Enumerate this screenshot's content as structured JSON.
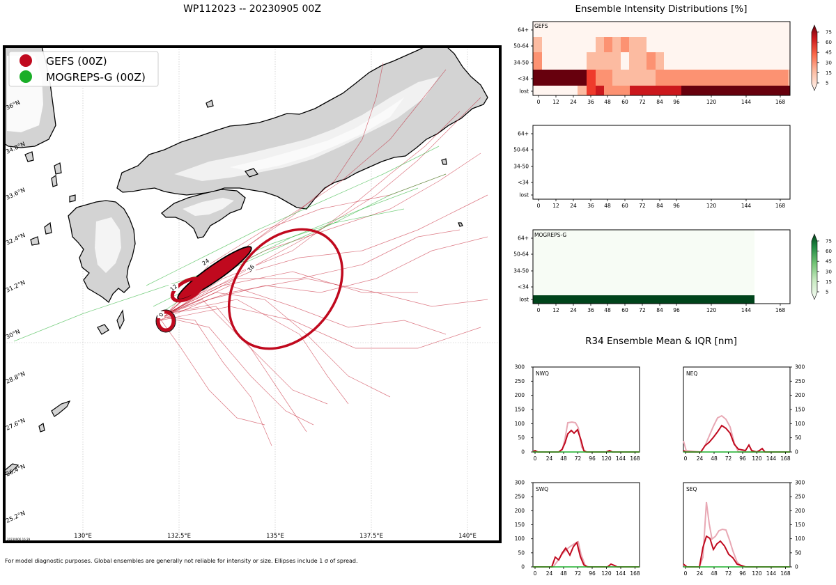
{
  "map": {
    "title": "WP112023 -- 20230905 00Z",
    "footnote": "For model diagnostic purposes. Global ensembles are generally not reliable for intensity or size. Ellipses include 1 σ of spread.",
    "stamp": "20230906 16:29",
    "lon_labels": [
      "130°E",
      "132.5°E",
      "135°E",
      "137.5°E",
      "140°E"
    ],
    "lat_labels": [
      "36°N",
      "34.8°N",
      "33.6°N",
      "32.4°N",
      "31.2°N",
      "30°N",
      "28.8°N",
      "27.6°N",
      "26.4°N",
      "25.2°N"
    ],
    "legend": [
      {
        "label": "GEFS (00Z)",
        "color": "#c0091e"
      },
      {
        "label": "MOGREPS-G (00Z)",
        "color": "#1aae28"
      }
    ],
    "ellipse_labels": [
      "0",
      "12",
      "24",
      "36"
    ],
    "colors": {
      "land": "#d3d3d3",
      "gefs": "#c0091e",
      "mogreps": "#1aae28",
      "border": "#000000"
    }
  },
  "intensity": {
    "title": "Ensemble Intensity Distributions [%]",
    "rows": [
      "64+",
      "50-64",
      "34-50",
      "<34",
      "lost"
    ],
    "x_ticks": [
      "0",
      "12",
      "24",
      "36",
      "48",
      "60",
      "72",
      "84",
      "96",
      "120",
      "144",
      "168"
    ],
    "panels": [
      {
        "label": "GEFS"
      },
      {
        "label": ""
      },
      {
        "label": "MOGREPS-G"
      }
    ],
    "colorbar_ticks": [
      "75",
      "60",
      "45",
      "30",
      "15",
      "5"
    ]
  },
  "r34": {
    "title": "R34 Ensemble Mean & IQR [nm]",
    "y_ticks": [
      "300",
      "250",
      "200",
      "150",
      "100",
      "50",
      "0"
    ],
    "x_ticks": [
      "0",
      "24",
      "48",
      "72",
      "96",
      "120",
      "144",
      "168"
    ],
    "panels": [
      {
        "label": "NWQ"
      },
      {
        "label": "NEQ"
      },
      {
        "label": "SWQ"
      },
      {
        "label": "SEQ"
      }
    ]
  }
}
